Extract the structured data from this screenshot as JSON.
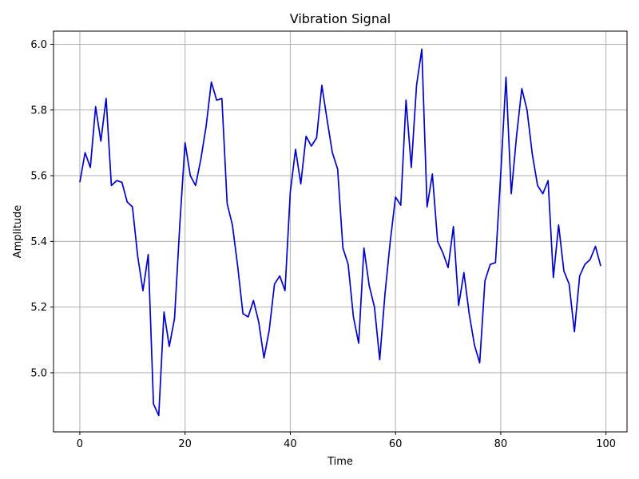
{
  "chart_data": {
    "type": "line",
    "title": "Vibration Signal",
    "xlabel": "Time",
    "ylabel": "Amplitude",
    "xlim": [
      -5,
      104
    ],
    "ylim": [
      4.82,
      6.04
    ],
    "xticks": [
      0,
      20,
      40,
      60,
      80,
      100
    ],
    "yticks": [
      5.0,
      5.2,
      5.4,
      5.6,
      5.8,
      6.0
    ],
    "ytick_labels": [
      "5.0",
      "5.2",
      "5.4",
      "5.6",
      "5.8",
      "6.0"
    ],
    "grid": true,
    "series": [
      {
        "color": "#0000cc",
        "x": [
          0,
          1,
          2,
          3,
          4,
          5,
          6,
          7,
          8,
          9,
          10,
          11,
          12,
          13,
          14,
          15,
          16,
          17,
          18,
          19,
          20,
          21,
          22,
          23,
          24,
          25,
          26,
          27,
          28,
          29,
          30,
          31,
          32,
          33,
          34,
          35,
          36,
          37,
          38,
          39,
          40,
          41,
          42,
          43,
          44,
          45,
          46,
          47,
          48,
          49,
          50,
          51,
          52,
          53,
          54,
          55,
          56,
          57,
          58,
          59,
          60,
          61,
          62,
          63,
          64,
          65,
          66,
          67,
          68,
          69,
          70,
          71,
          72,
          73,
          74,
          75,
          76,
          77,
          78,
          79,
          80,
          81,
          82,
          83,
          84,
          85,
          86,
          87,
          88,
          89,
          90,
          91,
          92,
          93,
          94,
          95,
          96,
          97,
          98,
          99
        ],
        "y": [
          5.58,
          5.67,
          5.625,
          5.81,
          5.705,
          5.835,
          5.57,
          5.585,
          5.58,
          5.52,
          5.505,
          5.355,
          5.25,
          5.36,
          4.905,
          4.87,
          5.185,
          5.08,
          5.165,
          5.45,
          5.7,
          5.6,
          5.57,
          5.65,
          5.75,
          5.885,
          5.83,
          5.835,
          5.515,
          5.45,
          5.325,
          5.18,
          5.17,
          5.22,
          5.155,
          5.045,
          5.13,
          5.27,
          5.295,
          5.25,
          5.55,
          5.68,
          5.575,
          5.72,
          5.69,
          5.715,
          5.875,
          5.77,
          5.67,
          5.62,
          5.38,
          5.33,
          5.17,
          5.09,
          5.38,
          5.265,
          5.2,
          5.04,
          5.24,
          5.4,
          5.535,
          5.51,
          5.83,
          5.625,
          5.875,
          5.985,
          5.505,
          5.605,
          5.4,
          5.365,
          5.32,
          5.445,
          5.205,
          5.305,
          5.18,
          5.085,
          5.03,
          5.28,
          5.33,
          5.335,
          5.605,
          5.9,
          5.545,
          5.72,
          5.865,
          5.8,
          5.665,
          5.57,
          5.545,
          5.585,
          5.29,
          5.45,
          5.31,
          5.27,
          5.125,
          5.295,
          5.33,
          5.345,
          5.385,
          5.325
        ]
      }
    ]
  }
}
